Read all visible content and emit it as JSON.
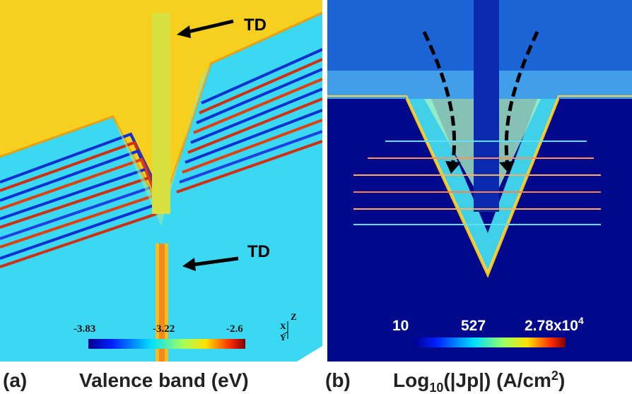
{
  "panels": [
    {
      "label": "(a)",
      "title": "Valence band (eV)",
      "annotations": [
        "TD",
        "TD"
      ],
      "colorbar_labels": [
        "-3.83",
        "-3.22",
        "-2.6"
      ],
      "axis_labels": [
        "X",
        "Y",
        "Z"
      ]
    },
    {
      "label": "(b)",
      "title_parts": [
        "Log",
        "10",
        "(|Jp|) (A/cm",
        "2",
        ")"
      ],
      "colorbar_labels": [
        "10",
        "527"
      ],
      "colorbar_max_parts": [
        "2.78x10",
        "4"
      ]
    }
  ]
}
